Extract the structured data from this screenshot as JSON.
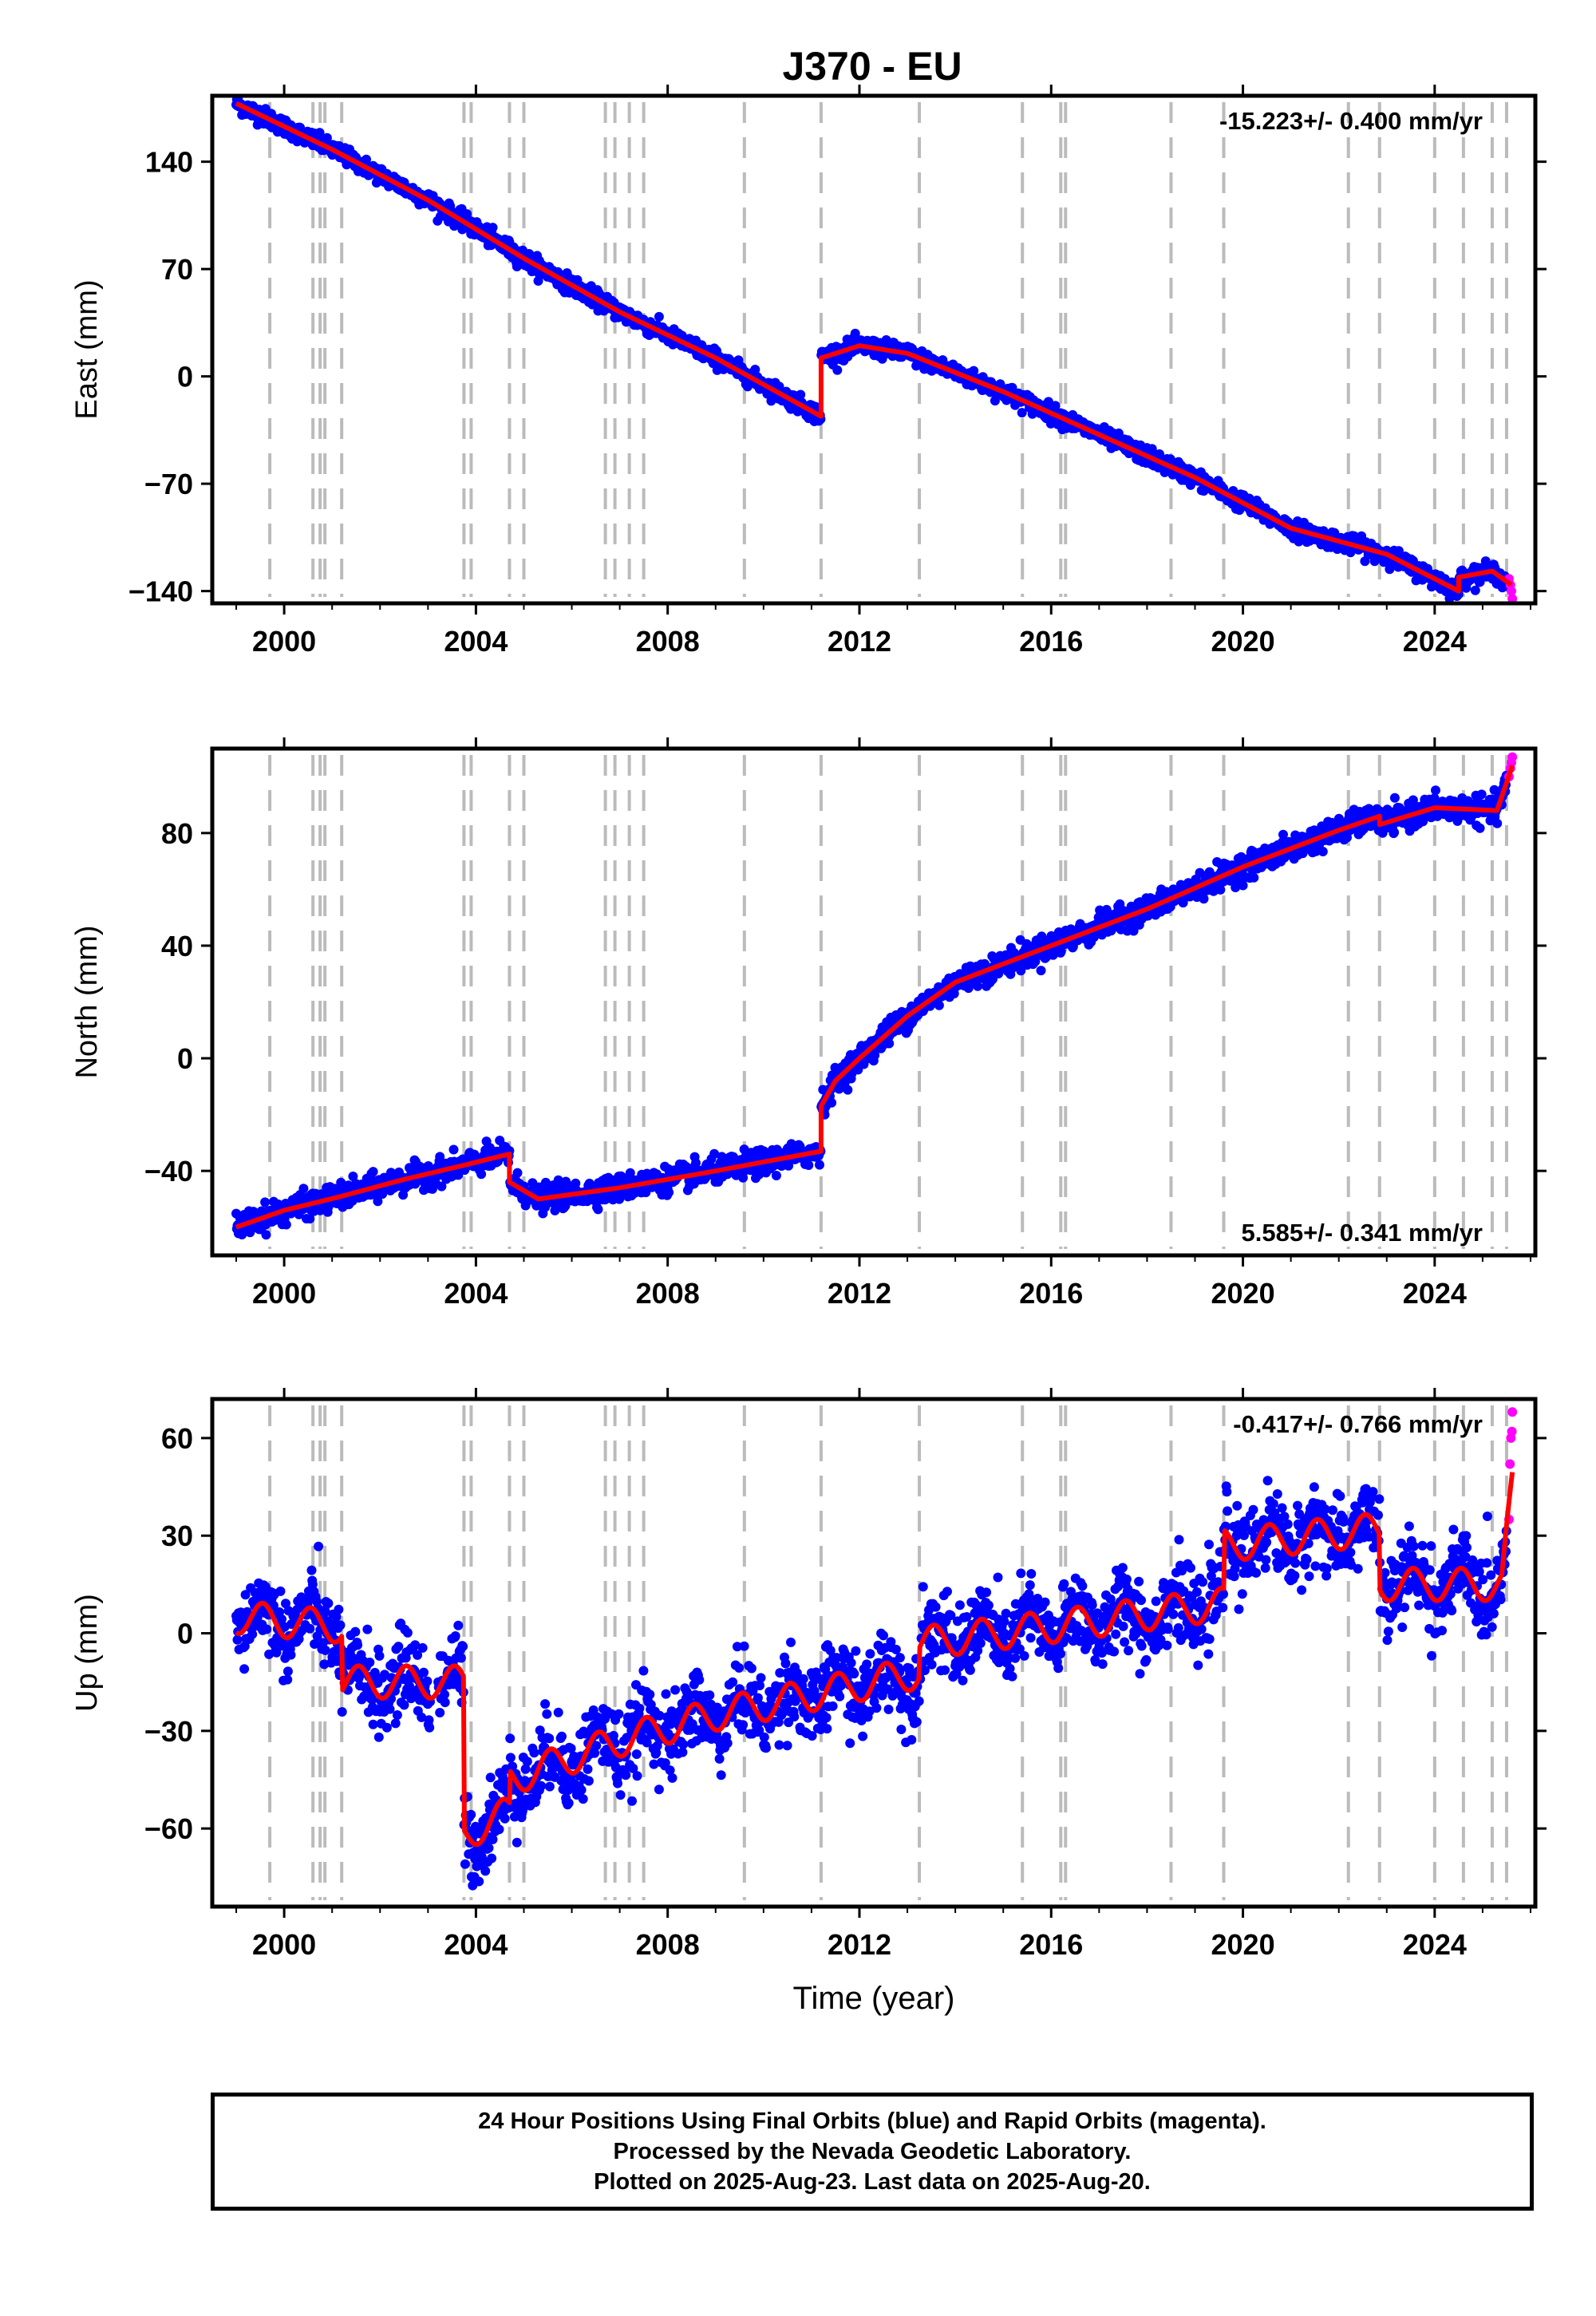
{
  "title": "J370 - EU",
  "footer": {
    "line1": "24 Hour Positions Using Final Orbits (blue) and Rapid Orbits (magenta).",
    "line2": "Processed by the Nevada Geodetic Laboratory.",
    "line3": "Plotted on 2025-Aug-23. Last data on 2025-Aug-20."
  },
  "colors": {
    "final": "#0000ff",
    "rapid": "#ff00ff",
    "model": "#ff0000",
    "event": "#bbbbbb",
    "frame": "#000000"
  },
  "chart_data": [
    {
      "type": "scatter",
      "ylabel": "East (mm)",
      "xlabel": "",
      "rate": "-15.223+/- 0.400 mm/yr",
      "rate_position": "top-right",
      "xlim": [
        1998.5,
        2026.1
      ],
      "ylim": [
        -148,
        183
      ],
      "xticks": [
        2000,
        2004,
        2008,
        2012,
        2016,
        2020,
        2024
      ],
      "yticks": [
        -140,
        -70,
        0,
        70,
        140
      ],
      "event_lines": [
        1999.7,
        2000.6,
        2000.75,
        2000.85,
        2001.2,
        2003.75,
        2003.9,
        2004.7,
        2005.0,
        2006.7,
        2006.9,
        2007.2,
        2007.5,
        2009.6,
        2011.2,
        2013.25,
        2015.4,
        2016.2,
        2016.3,
        2018.5,
        2019.6,
        2022.2,
        2022.85,
        2024.0,
        2024.6,
        2025.2,
        2025.5
      ],
      "model": {
        "x": [
          1999.0,
          2001.0,
          2003.0,
          2005.0,
          2007.0,
          2009.0,
          2011.2,
          2011.2,
          2012.0,
          2013.0,
          2015.0,
          2017.0,
          2019.0,
          2021.0,
          2023.0,
          2024.5,
          2024.5,
          2025.2,
          2025.6
        ],
        "y": [
          178,
          148,
          115,
          77,
          42,
          12,
          -26,
          12,
          20,
          15,
          -10,
          -38,
          -66,
          -99,
          -116,
          -140,
          -131,
          -127,
          -136
        ]
      },
      "final_scatter": 2.8,
      "rapid": {
        "x": [
          2025.55,
          2025.58,
          2025.6,
          2025.62
        ],
        "y": [
          -132,
          -136,
          -140,
          -145
        ]
      }
    },
    {
      "type": "scatter",
      "ylabel": "North (mm)",
      "xlabel": "",
      "rate": "5.585+/- 0.341 mm/yr",
      "rate_position": "bottom-right",
      "xlim": [
        1998.5,
        2026.1
      ],
      "ylim": [
        -70,
        110
      ],
      "xticks": [
        2000,
        2004,
        2008,
        2012,
        2016,
        2020,
        2024
      ],
      "yticks": [
        -40,
        0,
        40,
        80
      ],
      "event_lines": [
        1999.7,
        2000.6,
        2000.75,
        2000.85,
        2001.2,
        2003.75,
        2003.9,
        2004.7,
        2005.0,
        2006.7,
        2006.9,
        2007.2,
        2007.5,
        2009.6,
        2011.2,
        2013.25,
        2015.4,
        2016.2,
        2016.3,
        2018.5,
        2019.6,
        2022.2,
        2022.85,
        2024.0,
        2024.6,
        2025.2,
        2025.5
      ],
      "model": {
        "x": [
          1999.0,
          2000.0,
          2001.2,
          2002.5,
          2003.75,
          2004.7,
          2004.7,
          2005.3,
          2007.0,
          2009.0,
          2011.2,
          2011.2,
          2011.5,
          2012.0,
          2013.0,
          2014.0,
          2016.0,
          2018.0,
          2020.0,
          2022.0,
          2022.85,
          2022.85,
          2024.0,
          2025.3,
          2025.62
        ],
        "y": [
          -60,
          -54,
          -49,
          -43,
          -38,
          -34,
          -44,
          -50,
          -46,
          -40,
          -33,
          -17,
          -8,
          0,
          15,
          27,
          40,
          53,
          68,
          81,
          86,
          83,
          89,
          88,
          104
        ]
      },
      "final_scatter": 2.2,
      "rapid": {
        "x": [
          2025.55,
          2025.58,
          2025.6,
          2025.62
        ],
        "y": [
          100,
          103,
          105,
          107
        ]
      }
    },
    {
      "type": "scatter",
      "ylabel": "Up (mm)",
      "xlabel": "Time (year)",
      "rate": "-0.417+/- 0.766 mm/yr",
      "rate_position": "top-right",
      "xlim": [
        1998.5,
        2026.1
      ],
      "ylim": [
        -84,
        72
      ],
      "xticks": [
        2000,
        2004,
        2008,
        2012,
        2016,
        2020,
        2024
      ],
      "yticks": [
        -60,
        -30,
        0,
        30,
        60
      ],
      "event_lines": [
        1999.7,
        2000.6,
        2000.75,
        2000.85,
        2001.2,
        2003.75,
        2003.9,
        2004.7,
        2005.0,
        2006.7,
        2006.9,
        2007.2,
        2007.5,
        2009.6,
        2011.2,
        2013.25,
        2015.4,
        2016.2,
        2016.3,
        2018.5,
        2019.6,
        2022.2,
        2022.85,
        2024.0,
        2024.6,
        2025.2,
        2025.5
      ],
      "model": {
        "x": [
          1999.0,
          2001.2,
          2001.2,
          2003.75,
          2003.75,
          2004.7,
          2004.7,
          2007.0,
          2009.0,
          2011.0,
          2013.25,
          2013.25,
          2016.0,
          2019.6,
          2019.6,
          2022.85,
          2022.85,
          2025.4,
          2025.62
        ],
        "y": [
          5,
          2,
          -15,
          -15,
          -62,
          -55,
          -45,
          -33,
          -25,
          -19,
          -12,
          -3,
          2,
          9,
          27,
          32,
          15,
          15,
          45
        ]
      },
      "seasonal_amplitude": 5,
      "final_scatter": 6,
      "gaps": [
        [
          2003.05,
          2003.2
        ]
      ],
      "rapid": {
        "x": [
          2025.55,
          2025.57,
          2025.59,
          2025.61,
          2025.62
        ],
        "y": [
          35,
          52,
          60,
          62,
          68
        ]
      }
    }
  ]
}
